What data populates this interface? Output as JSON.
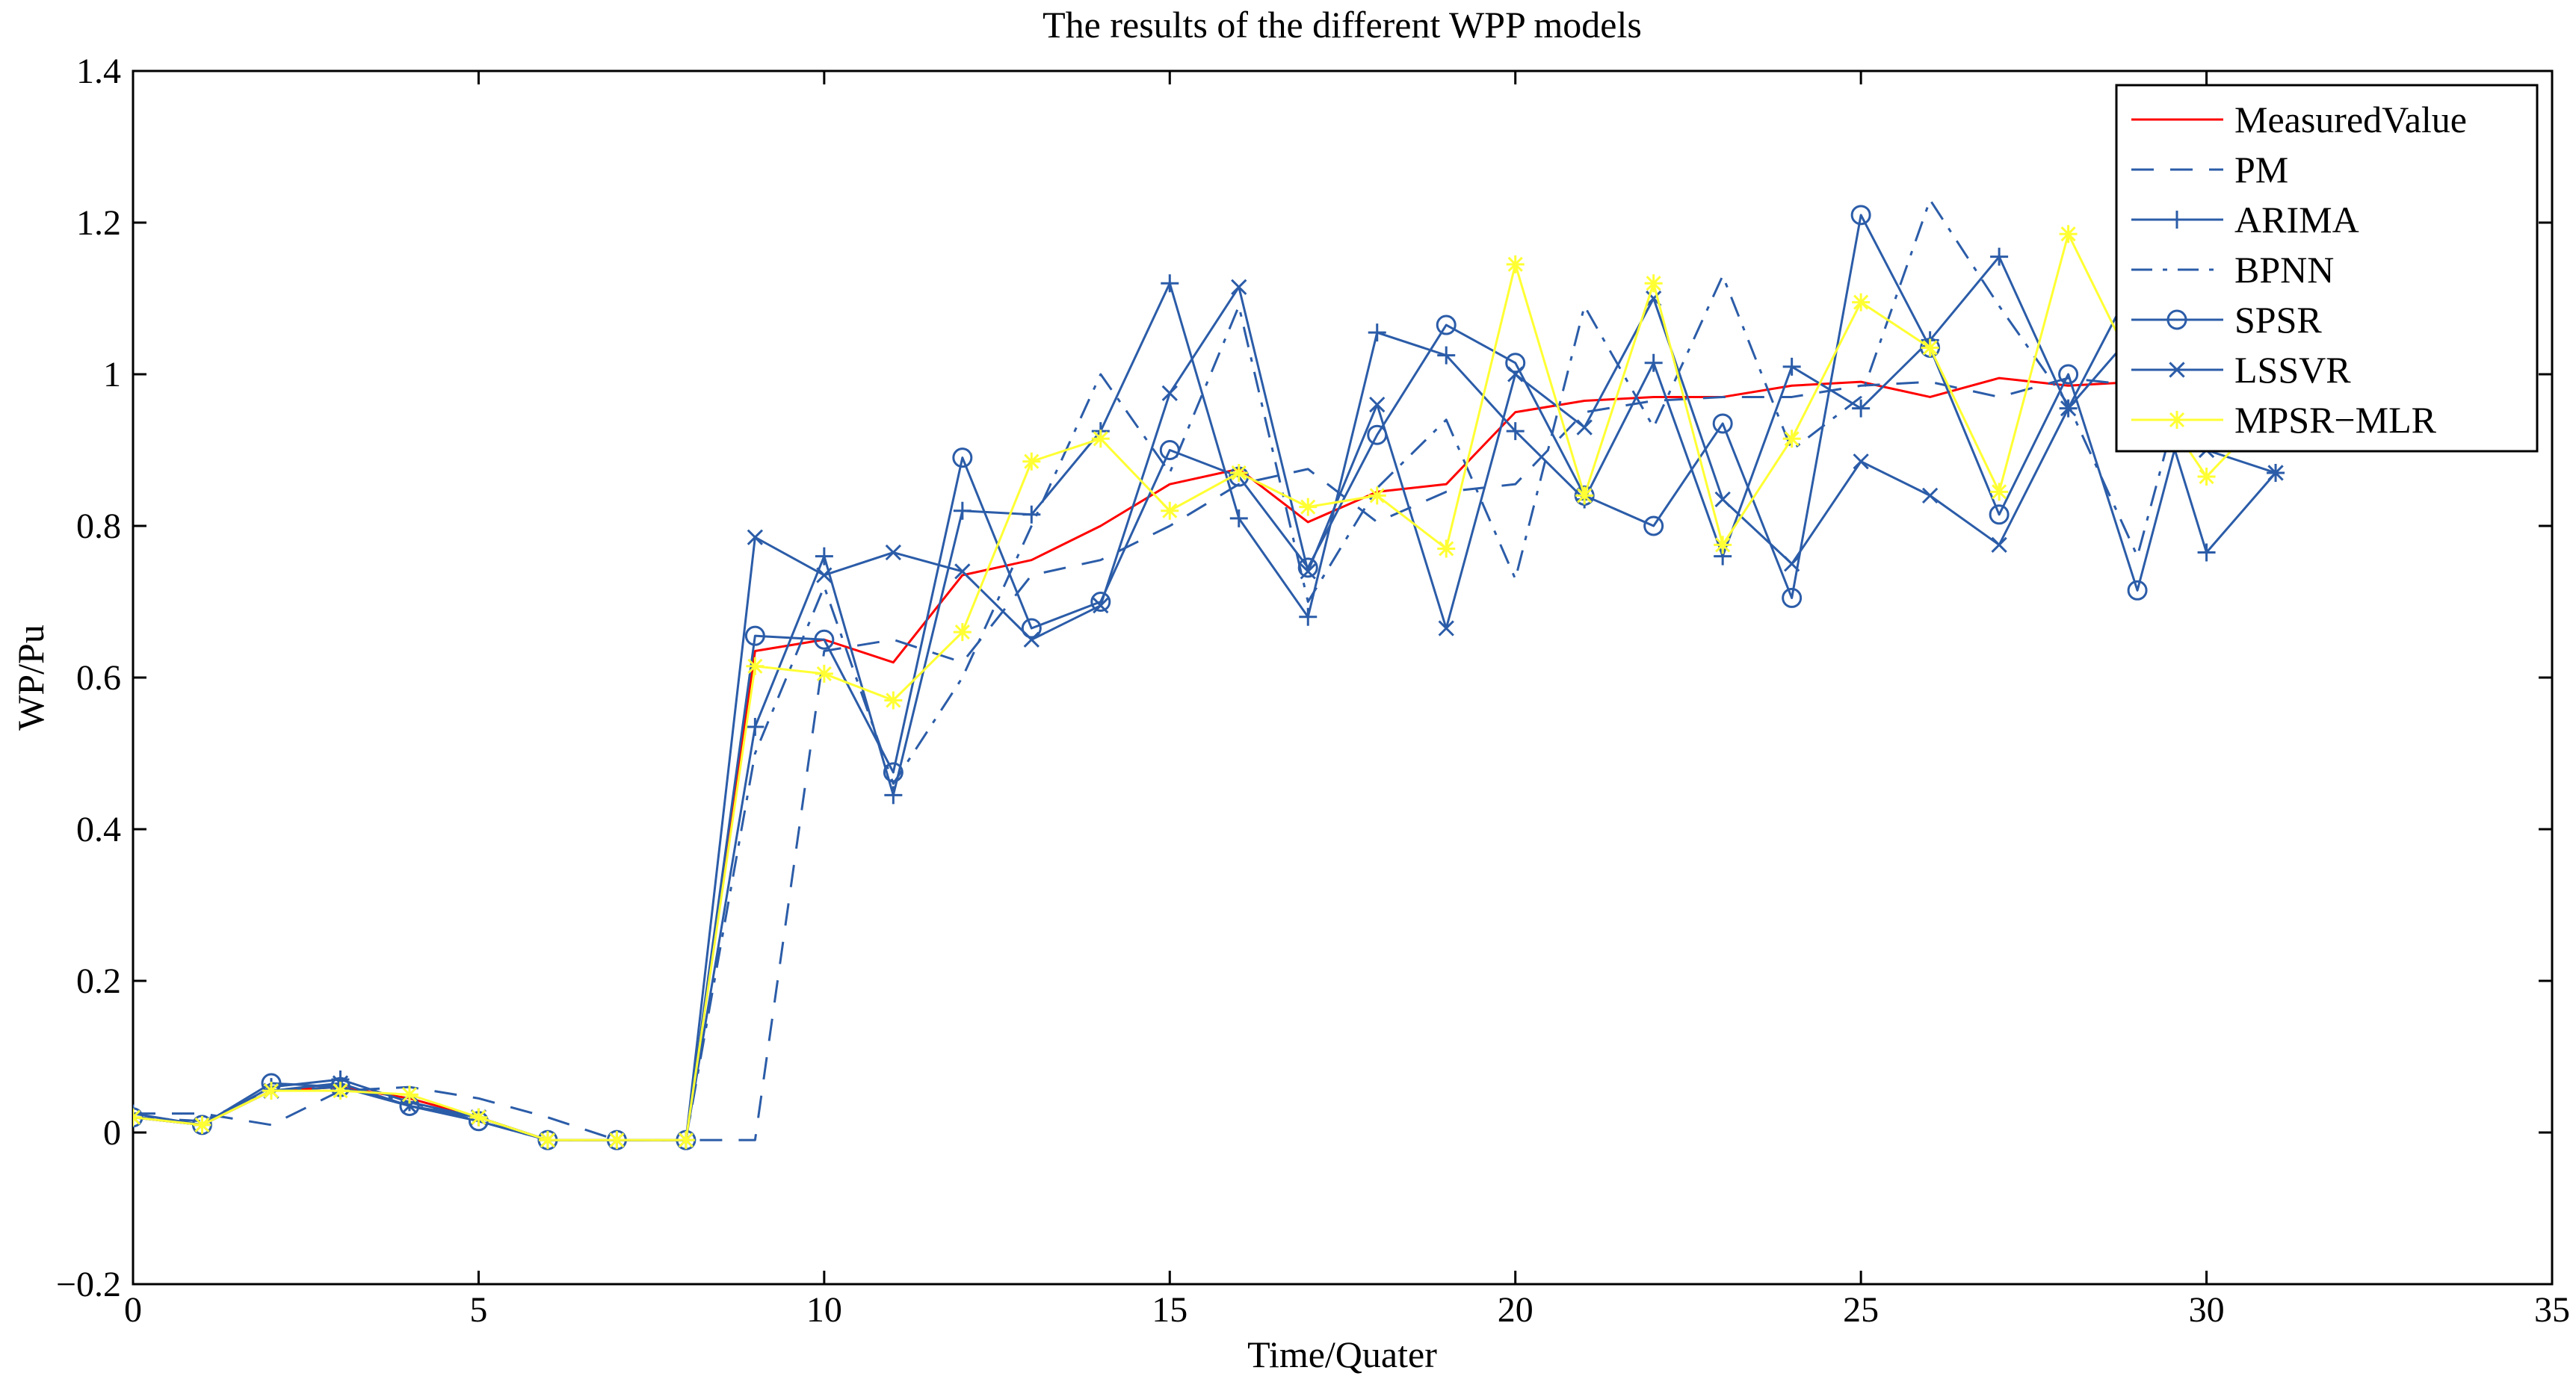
{
  "chart_data": {
    "type": "line",
    "title": "The results of the different WPP models",
    "xlabel": "Time/Quater",
    "ylabel": "WP/Pu",
    "xlim": [
      0,
      35
    ],
    "ylim": [
      -0.2,
      1.4
    ],
    "xticks": [
      0,
      5,
      10,
      15,
      20,
      25,
      30,
      35
    ],
    "xtick_labels": [
      "0",
      "5",
      "10",
      "15",
      "20",
      "25",
      "30",
      "35"
    ],
    "yticks": [
      -0.2,
      0,
      0.2,
      0.4,
      0.6,
      0.8,
      1,
      1.2,
      1.4
    ],
    "ytick_labels": [
      "−0.2",
      "0",
      "0.2",
      "0.4",
      "0.6",
      "0.8",
      "1",
      "1.2",
      "1.4"
    ],
    "grid": false,
    "legend_position": "top-right",
    "x": [
      0,
      1,
      2,
      3,
      4,
      5,
      6,
      7,
      8,
      9,
      10,
      11,
      12,
      13,
      14,
      15,
      16,
      17,
      18,
      19,
      20,
      21,
      22,
      23,
      24,
      25,
      26,
      27,
      28,
      29,
      30,
      31
    ],
    "series": [
      {
        "name": "MeasuredValue",
        "color": "#ff0000",
        "dash": "",
        "marker": "none",
        "values": [
          0.02,
          0.01,
          0.055,
          0.06,
          0.045,
          0.02,
          -0.01,
          -0.01,
          -0.01,
          0.635,
          0.65,
          0.62,
          0.735,
          0.755,
          0.8,
          0.855,
          0.875,
          0.805,
          0.845,
          0.855,
          0.95,
          0.965,
          0.97,
          0.97,
          0.985,
          0.99,
          0.97,
          0.995,
          0.985,
          0.99,
          0.99,
          0.99
        ]
      },
      {
        "name": "PM",
        "color": "#2b5ca8",
        "dash": "30,22",
        "marker": "none",
        "values": [
          0.025,
          0.025,
          0.01,
          0.055,
          0.06,
          0.045,
          0.02,
          -0.01,
          -0.01,
          -0.01,
          0.635,
          0.65,
          0.62,
          0.735,
          0.755,
          0.8,
          0.855,
          0.875,
          0.805,
          0.845,
          0.855,
          0.95,
          0.965,
          0.97,
          0.97,
          0.985,
          0.99,
          0.97,
          0.995,
          0.985,
          0.99,
          0.99
        ]
      },
      {
        "name": "ARIMA",
        "color": "#2b5ca8",
        "dash": "",
        "marker": "plus",
        "values": [
          0.025,
          0.01,
          0.06,
          0.07,
          0.04,
          0.02,
          -0.01,
          -0.01,
          -0.01,
          0.535,
          0.76,
          0.445,
          0.82,
          0.815,
          0.925,
          1.12,
          0.81,
          0.68,
          1.055,
          1.025,
          0.925,
          0.835,
          1.015,
          0.76,
          1.01,
          0.955,
          1.045,
          1.155,
          0.955,
          1.06,
          0.765,
          0.87
        ]
      },
      {
        "name": "BPNN",
        "color": "#2b5ca8",
        "dash": "28,14,6,14",
        "marker": "none",
        "values": [
          0.02,
          0.015,
          0.055,
          0.06,
          0.04,
          0.015,
          -0.01,
          -0.01,
          -0.01,
          0.5,
          0.72,
          0.46,
          0.6,
          0.8,
          1.0,
          0.87,
          1.09,
          0.7,
          0.85,
          0.94,
          0.73,
          1.09,
          0.93,
          1.13,
          0.9,
          0.97,
          1.23,
          1.09,
          0.96,
          0.76,
          1.1,
          0.95
        ]
      },
      {
        "name": "SPSR",
        "color": "#2b5ca8",
        "dash": "",
        "marker": "circle",
        "values": [
          0.02,
          0.01,
          0.065,
          0.06,
          0.035,
          0.015,
          -0.01,
          -0.01,
          -0.01,
          0.655,
          0.65,
          0.475,
          0.89,
          0.665,
          0.7,
          0.9,
          0.865,
          0.745,
          0.92,
          1.065,
          1.015,
          0.84,
          0.8,
          0.935,
          0.705,
          1.21,
          1.035,
          0.815,
          1.0,
          0.715,
          1.06,
          0.96
        ]
      },
      {
        "name": "LSSVR",
        "color": "#2b5ca8",
        "dash": "",
        "marker": "x",
        "values": [
          0.02,
          0.01,
          0.055,
          0.065,
          0.035,
          0.02,
          -0.01,
          -0.01,
          -0.01,
          0.785,
          0.735,
          0.765,
          0.74,
          0.65,
          0.695,
          0.975,
          1.115,
          0.74,
          0.96,
          0.665,
          1.0,
          0.93,
          1.1,
          0.835,
          0.75,
          0.885,
          0.84,
          0.775,
          0.955,
          1.13,
          0.9,
          0.87
        ]
      },
      {
        "name": "MPSR−MLR",
        "color": "#ffff33",
        "dash": "",
        "marker": "star",
        "values": [
          0.02,
          0.01,
          0.055,
          0.055,
          0.05,
          0.02,
          -0.01,
          -0.01,
          -0.01,
          0.615,
          0.605,
          0.57,
          0.66,
          0.885,
          0.915,
          0.82,
          0.87,
          0.825,
          0.84,
          0.77,
          1.145,
          0.84,
          1.12,
          0.775,
          0.915,
          1.095,
          1.035,
          0.845,
          1.185,
          1.0,
          0.865,
          0.96
        ]
      }
    ]
  }
}
